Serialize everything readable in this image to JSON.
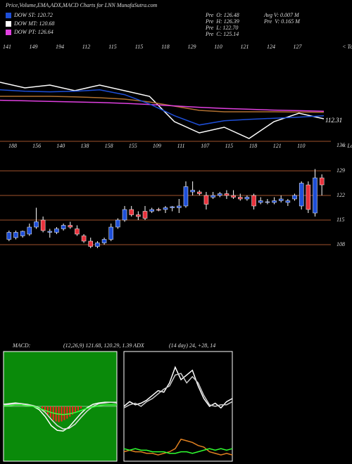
{
  "header": {
    "title": "Price,Volume,EMA,ADX,MACD Charts for LNN MunafaSutra.com"
  },
  "legend": [
    {
      "label": "DOW ST: 120.72",
      "color": "#1e4fd8"
    },
    {
      "label": "DOW MT: 120.68",
      "color": "#ffffff"
    },
    {
      "label": "DOW PT: 126.64",
      "color": "#e040e0"
    }
  ],
  "info": [
    "Pre  O: 126.48",
    "Pre  H: 126.39",
    "Pre  L: 122.70",
    "Pre  C: 125.14",
    "Avg V: 0.007 M",
    "Pre  V: 0.165 M"
  ],
  "chart_data": [
    {
      "type": "line",
      "corner_label": "< Tops",
      "annotations": [
        "112.31",
        "136"
      ],
      "top_labels": [
        "141",
        "149",
        "194",
        "112",
        "115",
        "115",
        "118",
        "129",
        "110",
        "121",
        "124",
        "127"
      ],
      "ylim": [
        104,
        133
      ],
      "series": [
        {
          "color": "#ffffff",
          "values": [
            126,
            124,
            125,
            123,
            125,
            123,
            121,
            112,
            108,
            110,
            106,
            112,
            115,
            113
          ]
        },
        {
          "color": "#b07030",
          "values": [
            121,
            121,
            121,
            120.8,
            120.5,
            120,
            119,
            117.5,
            116,
            115.5,
            115.5,
            115.5,
            115.4,
            115.3
          ]
        },
        {
          "color": "#e040e0",
          "values": [
            119.6,
            119.4,
            119.2,
            119,
            118.8,
            118.5,
            118.1,
            117.6,
            117.1,
            116.7,
            116.4,
            116.1,
            115.9,
            115.7
          ]
        },
        {
          "color": "#1e4fd8",
          "values": [
            123.3,
            122.8,
            122.6,
            122.8,
            123.3,
            121.6,
            118.3,
            114.1,
            110.8,
            112.3,
            112.8,
            113.2,
            113.6,
            114.1
          ]
        }
      ]
    },
    {
      "type": "candlestick",
      "corner_label": "< Lows",
      "top_labels": [
        "188",
        "156",
        "140",
        "138",
        "158",
        "155",
        "109",
        "111",
        "107",
        "115",
        "118",
        "121",
        "110"
      ],
      "up_color": "#1e4fd8",
      "down_color": "#e8323c",
      "ylim": [
        103.6,
        131.6
      ],
      "yticks": [
        129,
        122,
        115,
        108
      ],
      "open": [
        109.5,
        110,
        110.5,
        111,
        113,
        115,
        111.5,
        111.5,
        112.5,
        113.5,
        112.5,
        110.5,
        109,
        107.5,
        108.5,
        109.5,
        113,
        115,
        118,
        116.5,
        117.5,
        117.5,
        118,
        118,
        118.5,
        118.5,
        119,
        123,
        123,
        122,
        121.5,
        122,
        122.5,
        122,
        121.5,
        121,
        122,
        120,
        120,
        120,
        120.5,
        120,
        121,
        119,
        125,
        117,
        127
      ],
      "high": [
        112,
        112,
        112,
        114,
        118.5,
        116,
        112.5,
        113,
        114,
        114.5,
        113.5,
        111,
        110,
        109,
        110,
        114,
        115.5,
        119,
        119,
        117.5,
        119,
        118.5,
        118.5,
        119,
        119,
        121,
        126,
        126,
        123.5,
        123,
        123,
        123,
        123.5,
        123.5,
        122.5,
        122,
        122.5,
        121.5,
        121,
        121.5,
        122,
        121,
        122.5,
        126,
        126,
        129.5,
        128
      ],
      "low": [
        109,
        109.5,
        110,
        110.5,
        112.5,
        111.5,
        110,
        111,
        112,
        112.5,
        110.5,
        108.5,
        107,
        107,
        108,
        109,
        112.5,
        114.5,
        116,
        115,
        115,
        117,
        117.5,
        117,
        117.5,
        117,
        118.5,
        122,
        122,
        118,
        121,
        121.5,
        121,
        121,
        120.5,
        120.5,
        118,
        119.5,
        119.5,
        119.5,
        120,
        119,
        120.5,
        118,
        117,
        116,
        122
      ],
      "close": [
        111.5,
        111.5,
        111.8,
        113,
        114.5,
        112,
        111.8,
        112.5,
        113.5,
        113,
        111,
        109,
        107.5,
        108.5,
        109.5,
        113,
        115,
        118,
        116.5,
        116,
        115.5,
        118,
        117.8,
        118.5,
        118.8,
        119,
        124.5,
        123.5,
        122.5,
        119.5,
        122,
        122.5,
        122,
        121.5,
        121,
        121.5,
        119,
        120.5,
        120.2,
        120.5,
        121,
        120.5,
        122,
        125.5,
        118,
        127,
        125
      ]
    },
    {
      "type": "macd",
      "title": "MACD:",
      "subtitle": "(12,26,9) 121.68, 120.29, 1.39 ADX",
      "ylim": [
        -8,
        8
      ],
      "hist_color": "#ff2020",
      "background": "#0a8a0a",
      "histogram": [
        -0.3,
        -0.8,
        -1.2,
        -1.6,
        -2,
        -2.2,
        -2.3,
        -2.2,
        -2,
        -1.8,
        -1.5,
        -1.2,
        -0.9,
        -0.6,
        -0.3
      ],
      "series": [
        {
          "color": "#ffffff",
          "values": [
            0.3,
            0.4,
            0.5,
            0.4,
            0.2,
            0,
            -0.5,
            -1.5,
            -2.8,
            -3.5,
            -3.6,
            -3,
            -2,
            -1,
            -0.2,
            0.3,
            0.5,
            0.6,
            0.6,
            0.5
          ]
        },
        {
          "color": "#dddddd",
          "values": [
            0.2,
            0.3,
            0.4,
            0.4,
            0.3,
            0.1,
            -0.2,
            -0.9,
            -1.9,
            -2.8,
            -3.3,
            -3.2,
            -2.6,
            -1.6,
            -0.7,
            0,
            0.4,
            0.5,
            0.6,
            0.6
          ]
        },
        {
          "color": "#40ff40",
          "values": [
            0.1,
            0.1,
            0.2,
            0.2,
            0.1,
            0,
            -0.3,
            -0.6,
            -0.9,
            -1.1,
            -1.2,
            -1.1,
            -0.9,
            -0.6,
            -0.3,
            -0.1,
            0.1,
            0.2,
            0.2,
            0.2
          ]
        }
      ]
    },
    {
      "type": "line",
      "title": "(14 day) 24, +28, 14",
      "ylim": [
        0,
        70
      ],
      "series": [
        {
          "color": "#ffffff",
          "values": [
            35,
            38,
            36,
            37,
            39,
            42,
            45,
            44,
            50,
            60,
            52,
            55,
            58,
            48,
            40,
            35,
            37,
            34,
            38,
            40
          ]
        },
        {
          "color": "#cccccc",
          "values": [
            34,
            36,
            37,
            35,
            38,
            40,
            43,
            46,
            48,
            55,
            56,
            50,
            54,
            50,
            42,
            36,
            35,
            36,
            36,
            38
          ]
        },
        {
          "color": "#e08020",
          "values": [
            6,
            7,
            6,
            6,
            5,
            5,
            4,
            5,
            6,
            8,
            14,
            13,
            12,
            10,
            9,
            6,
            5,
            4,
            5,
            4
          ]
        },
        {
          "color": "#30ff30",
          "values": [
            8,
            7,
            8,
            7,
            7,
            6,
            6,
            6,
            5,
            5,
            6,
            6,
            5,
            6,
            7,
            8,
            7,
            8,
            7,
            8
          ]
        }
      ]
    }
  ]
}
